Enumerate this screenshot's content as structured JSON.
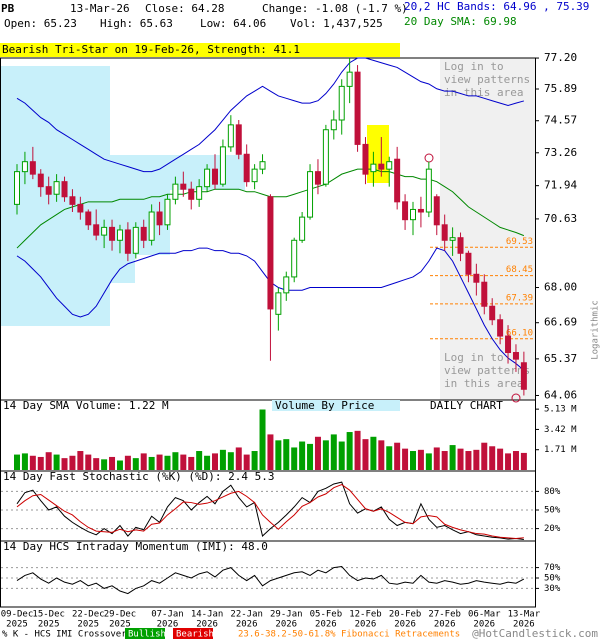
{
  "header": {
    "symbol": "PB",
    "date": "13-Mar-26",
    "close": "Close: 64.28",
    "change": "Change: -1.08 (-1.7 %)",
    "open": "Open: 65.23",
    "high": "High: 65.63",
    "low": "Low: 64.06",
    "vol": "Vol: 1,437,525",
    "bands": "20,2 HC Bands: 64.96 , 75.39",
    "sma": "20 Day SMA: 69.98",
    "pattern": "Bearish Tri-Star on 19-Feb-26, Strength: 41.1",
    "login": "Log in to view patterns in this area",
    "scale": "Logarithmic"
  },
  "chart_data": {
    "type": "candlestick",
    "log": true,
    "up_color": "#00a000",
    "down_color": "#c0103a",
    "categories": [
      "09-Dec",
      null,
      null,
      null,
      "15-Dec",
      null,
      null,
      null,
      null,
      "22-Dec",
      null,
      null,
      null,
      "29-Dec",
      null,
      null,
      null,
      null,
      null,
      "07-Jan",
      null,
      null,
      null,
      null,
      "14-Jan",
      null,
      null,
      null,
      null,
      "22-Jan",
      null,
      null,
      null,
      null,
      "29-Jan",
      null,
      null,
      null,
      null,
      "05-Feb",
      null,
      null,
      null,
      null,
      "12-Feb",
      null,
      null,
      null,
      null,
      "20-Feb",
      null,
      null,
      null,
      null,
      "27-Feb",
      null,
      null,
      null,
      null,
      "06-Mar",
      null,
      null,
      null,
      null,
      "13-Mar"
    ],
    "category_years": [
      "2025",
      null,
      null,
      null,
      "2025",
      null,
      null,
      null,
      null,
      "2025",
      null,
      null,
      null,
      "2025",
      null,
      null,
      null,
      null,
      null,
      "2026",
      null,
      null,
      null,
      null,
      "2026",
      null,
      null,
      null,
      null,
      "2026",
      null,
      null,
      null,
      null,
      "2026",
      null,
      null,
      null,
      null,
      "2026",
      null,
      null,
      null,
      null,
      "2026",
      null,
      null,
      null,
      null,
      "2026",
      null,
      null,
      null,
      null,
      "2026",
      null,
      null,
      null,
      null,
      "2026",
      null,
      null,
      null,
      null,
      "2026"
    ],
    "ohlc": [
      [
        71.2,
        72.8,
        70.8,
        72.5
      ],
      [
        72.5,
        73.3,
        72.0,
        72.9
      ],
      [
        72.9,
        73.5,
        72.2,
        72.4
      ],
      [
        72.4,
        72.6,
        71.5,
        71.9
      ],
      [
        71.9,
        72.3,
        71.2,
        71.6
      ],
      [
        71.6,
        72.4,
        71.3,
        72.1
      ],
      [
        72.1,
        72.3,
        71.3,
        71.5
      ],
      [
        71.5,
        71.8,
        70.9,
        71.2
      ],
      [
        71.2,
        71.5,
        70.6,
        70.9
      ],
      [
        70.9,
        71.0,
        70.2,
        70.4
      ],
      [
        70.4,
        71.0,
        69.8,
        70.0
      ],
      [
        70.0,
        70.6,
        69.5,
        70.3
      ],
      [
        70.3,
        70.6,
        69.4,
        69.8
      ],
      [
        69.8,
        70.4,
        69.3,
        70.2
      ],
      [
        70.2,
        70.5,
        69.0,
        69.3
      ],
      [
        69.3,
        70.5,
        69.1,
        70.3
      ],
      [
        70.3,
        70.6,
        69.5,
        69.8
      ],
      [
        69.8,
        71.2,
        69.6,
        70.9
      ],
      [
        70.9,
        71.3,
        70.0,
        70.4
      ],
      [
        70.4,
        71.6,
        70.2,
        71.4
      ],
      [
        71.4,
        72.3,
        71.2,
        72.0
      ],
      [
        72.0,
        72.5,
        71.5,
        71.8
      ],
      [
        71.8,
        72.1,
        71.0,
        71.4
      ],
      [
        71.4,
        72.2,
        71.1,
        71.9
      ],
      [
        71.9,
        72.8,
        71.7,
        72.6
      ],
      [
        72.6,
        73.2,
        71.8,
        72.0
      ],
      [
        72.0,
        73.8,
        71.9,
        73.5
      ],
      [
        73.5,
        74.8,
        73.3,
        74.4
      ],
      [
        74.4,
        74.6,
        73.0,
        73.2
      ],
      [
        73.2,
        73.6,
        71.9,
        72.1
      ],
      [
        72.1,
        72.8,
        71.8,
        72.6
      ],
      [
        72.6,
        73.2,
        72.4,
        72.9
      ],
      [
        71.5,
        71.6,
        65.3,
        67.2
      ],
      [
        67.0,
        68.0,
        66.4,
        67.8
      ],
      [
        67.8,
        68.6,
        67.5,
        68.4
      ],
      [
        68.4,
        69.9,
        68.2,
        69.8
      ],
      [
        69.8,
        70.9,
        69.7,
        70.7
      ],
      [
        70.7,
        72.8,
        70.6,
        72.5
      ],
      [
        72.5,
        73.0,
        71.6,
        72.0
      ],
      [
        72.0,
        74.4,
        71.9,
        74.2
      ],
      [
        74.2,
        75.0,
        73.8,
        74.6
      ],
      [
        74.6,
        76.3,
        74.0,
        76.0
      ],
      [
        76.0,
        77.2,
        75.3,
        76.6
      ],
      [
        76.6,
        76.9,
        73.3,
        73.6
      ],
      [
        73.6,
        73.9,
        72.0,
        72.4
      ],
      [
        72.5,
        73.3,
        71.9,
        72.8
      ],
      [
        72.8,
        73.9,
        72.3,
        72.6
      ],
      [
        72.6,
        73.1,
        71.9,
        72.9
      ],
      [
        73.0,
        73.5,
        71.0,
        71.3
      ],
      [
        71.3,
        71.6,
        70.2,
        70.6
      ],
      [
        70.6,
        71.3,
        70.0,
        71.0
      ],
      [
        71.0,
        71.5,
        70.3,
        70.9
      ],
      [
        70.9,
        72.9,
        70.7,
        72.6
      ],
      [
        71.5,
        71.6,
        70.0,
        70.4
      ],
      [
        70.4,
        70.8,
        69.4,
        69.8
      ],
      [
        69.8,
        70.3,
        69.2,
        69.9
      ],
      [
        69.9,
        70.1,
        69.0,
        69.3
      ],
      [
        69.3,
        69.4,
        68.2,
        68.5
      ],
      [
        68.5,
        68.9,
        67.7,
        68.2
      ],
      [
        68.2,
        68.5,
        67.0,
        67.3
      ],
      [
        67.3,
        67.6,
        66.6,
        66.8
      ],
      [
        66.8,
        67.0,
        65.9,
        66.2
      ],
      [
        66.2,
        66.6,
        65.2,
        65.6
      ],
      [
        65.6,
        65.9,
        64.9,
        65.36
      ],
      [
        65.23,
        65.63,
        64.06,
        64.28
      ]
    ],
    "bands": [
      {
        "name": "upper",
        "color": "#0000cc",
        "values": [
          75.5,
          75.3,
          75.0,
          74.7,
          74.5,
          74.2,
          74.0,
          73.8,
          73.6,
          73.4,
          73.2,
          73.0,
          72.9,
          72.8,
          72.7,
          72.6,
          72.5,
          72.5,
          72.6,
          72.8,
          73.0,
          73.2,
          73.4,
          73.6,
          73.9,
          74.2,
          74.6,
          75.0,
          75.3,
          75.6,
          75.8,
          76.0,
          75.8,
          75.6,
          75.5,
          75.4,
          75.3,
          75.3,
          75.4,
          75.7,
          76.1,
          76.6,
          77.0,
          77.2,
          77.2,
          77.1,
          77.0,
          76.9,
          76.8,
          76.6,
          76.4,
          76.2,
          76.1,
          75.9,
          75.8,
          75.8,
          75.7,
          75.6,
          75.6,
          75.5,
          75.4,
          75.3,
          75.2,
          75.3,
          75.39
        ]
      },
      {
        "name": "lower",
        "color": "#0000cc",
        "values": [
          69.2,
          69.0,
          68.7,
          68.4,
          68.0,
          67.6,
          67.3,
          67.0,
          66.9,
          67.0,
          67.3,
          67.8,
          68.3,
          68.7,
          68.9,
          69.0,
          69.1,
          69.2,
          69.3,
          69.3,
          69.3,
          69.4,
          69.4,
          69.5,
          69.5,
          69.4,
          69.4,
          69.3,
          69.3,
          69.2,
          69.0,
          68.6,
          68.2,
          68.0,
          67.9,
          67.9,
          67.9,
          68.0,
          68.0,
          68.0,
          68.0,
          68.0,
          68.0,
          68.0,
          68.0,
          68.0,
          68.0,
          68.1,
          68.2,
          68.3,
          68.4,
          68.6,
          69.0,
          69.5,
          69.4,
          69.0,
          68.4,
          67.8,
          67.2,
          66.6,
          66.1,
          65.7,
          65.4,
          65.2,
          64.96
        ]
      },
      {
        "name": "sma",
        "color": "#008800",
        "values": [
          69.5,
          69.8,
          70.1,
          70.4,
          70.6,
          70.8,
          71.0,
          71.1,
          71.2,
          71.3,
          71.3,
          71.3,
          71.3,
          71.4,
          71.4,
          71.4,
          71.4,
          71.5,
          71.5,
          71.6,
          71.6,
          71.6,
          71.7,
          71.7,
          71.7,
          71.8,
          71.8,
          71.8,
          71.8,
          71.7,
          71.7,
          71.6,
          71.5,
          71.5,
          71.5,
          71.6,
          71.7,
          71.8,
          71.9,
          72.0,
          72.2,
          72.4,
          72.5,
          72.6,
          72.6,
          72.6,
          72.5,
          72.5,
          72.4,
          72.3,
          72.3,
          72.2,
          72.2,
          72.1,
          71.9,
          71.7,
          71.4,
          71.1,
          70.9,
          70.7,
          70.5,
          70.3,
          70.2,
          70.1,
          69.98
        ]
      }
    ],
    "ylim": [
      63.9,
      77.63
    ],
    "yticks": [
      {
        "value": 77.2,
        "label": "77.20"
      },
      75.89,
      74.57,
      73.26,
      71.94,
      70.63,
      {
        "value": 68,
        "label": "68.00"
      },
      66.69,
      65.37,
      64.06
    ],
    "fib_levels": [
      {
        "value": 69.53,
        "label": "69.53"
      },
      {
        "value": 68.45,
        "label": "68.45"
      },
      {
        "value": 67.39,
        "label": "67.39"
      },
      {
        "value": 66.1,
        "label": "66.10"
      }
    ],
    "fib_color": "#ff8000",
    "volume": {
      "title": "14 Day SMA Volume: 1.22 M",
      "vbp": "Volume By Price",
      "daily": "DAILY CHART",
      "ylim": [
        0,
        5.9
      ],
      "yticks": [
        {
          "value": 5.13,
          "label": "5.13 M"
        },
        {
          "value": 3.42,
          "label": "3.42 M"
        },
        {
          "value": 1.71,
          "label": "1.71 M"
        }
      ],
      "values": [
        1.3,
        1.4,
        1.2,
        1.1,
        1.5,
        1.3,
        1.0,
        1.2,
        1.6,
        1.3,
        1.0,
        0.9,
        1.1,
        0.8,
        1.2,
        1.0,
        1.4,
        1.1,
        1.3,
        1.2,
        1.5,
        1.3,
        1.1,
        1.6,
        1.2,
        1.4,
        1.7,
        1.5,
        1.9,
        1.3,
        1.6,
        5.1,
        3.0,
        2.5,
        2.6,
        1.9,
        2.4,
        2.2,
        2.8,
        2.5,
        3.0,
        2.4,
        3.2,
        3.3,
        2.6,
        2.8,
        2.5,
        2.0,
        2.3,
        1.8,
        1.6,
        1.7,
        1.4,
        1.9,
        1.6,
        2.1,
        1.8,
        1.6,
        1.7,
        2.3,
        2.0,
        1.8,
        1.4,
        1.6,
        1.44
      ]
    },
    "stochastic": {
      "title": "14 Day Fast Stochastic (%K) (%D): 2.4  5.3",
      "ylim": [
        0,
        100
      ],
      "yticks": [
        {
          "value": 80,
          "label": "80%"
        },
        {
          "value": 50,
          "label": "50%"
        },
        {
          "value": 20,
          "label": "20%"
        }
      ],
      "series": [
        {
          "name": "%K",
          "color": "#000000",
          "values": [
            60,
            78,
            82,
            65,
            50,
            55,
            40,
            30,
            22,
            15,
            10,
            20,
            12,
            25,
            8,
            22,
            18,
            40,
            30,
            55,
            70,
            65,
            50,
            62,
            72,
            60,
            80,
            90,
            70,
            55,
            62,
            8,
            20,
            30,
            42,
            55,
            70,
            62,
            80,
            85,
            92,
            95,
            60,
            45,
            52,
            48,
            55,
            35,
            25,
            30,
            28,
            60,
            35,
            22,
            25,
            18,
            12,
            15,
            10,
            8,
            6,
            5,
            3,
            4,
            2.4
          ]
        },
        {
          "name": "%D",
          "color": "#cc0000",
          "values": [
            55,
            65,
            73,
            75,
            66,
            57,
            48,
            42,
            31,
            22,
            16,
            15,
            14,
            19,
            15,
            18,
            16,
            27,
            29,
            42,
            52,
            63,
            62,
            59,
            61,
            65,
            71,
            77,
            80,
            72,
            62,
            42,
            30,
            19,
            31,
            42,
            56,
            62,
            71,
            76,
            86,
            91,
            82,
            67,
            52,
            48,
            52,
            46,
            38,
            30,
            28,
            39,
            41,
            39,
            27,
            22,
            18,
            15,
            12,
            11,
            8,
            6,
            5,
            4,
            5.3
          ]
        }
      ]
    },
    "imi": {
      "title": "14 Day HCS Intraday Momentum (IMI): 48.0",
      "ylim": [
        0,
        100
      ],
      "color": "#000000",
      "yticks": [
        {
          "value": 70,
          "label": "70%"
        },
        {
          "value": 50,
          "label": "50%"
        },
        {
          "value": 30,
          "label": "30%"
        }
      ],
      "values": [
        45,
        55,
        60,
        48,
        40,
        50,
        42,
        38,
        45,
        35,
        40,
        30,
        35,
        25,
        20,
        30,
        35,
        45,
        40,
        50,
        60,
        55,
        50,
        58,
        62,
        52,
        65,
        70,
        55,
        45,
        55,
        35,
        45,
        50,
        55,
        60,
        62,
        55,
        65,
        60,
        70,
        72,
        55,
        45,
        50,
        48,
        55,
        40,
        38,
        42,
        40,
        55,
        42,
        40,
        45,
        42,
        38,
        40,
        45,
        42,
        40,
        38,
        42,
        40,
        48
      ]
    },
    "legend": {
      "crossover": "% K - HCS IMI Crossover,",
      "bullish": "Bullish",
      "bearish": "Bearish",
      "fib": "23.6-38.2-50-61.8% Fibonacci Retracements",
      "site": "@HotCandlestick.com"
    }
  }
}
